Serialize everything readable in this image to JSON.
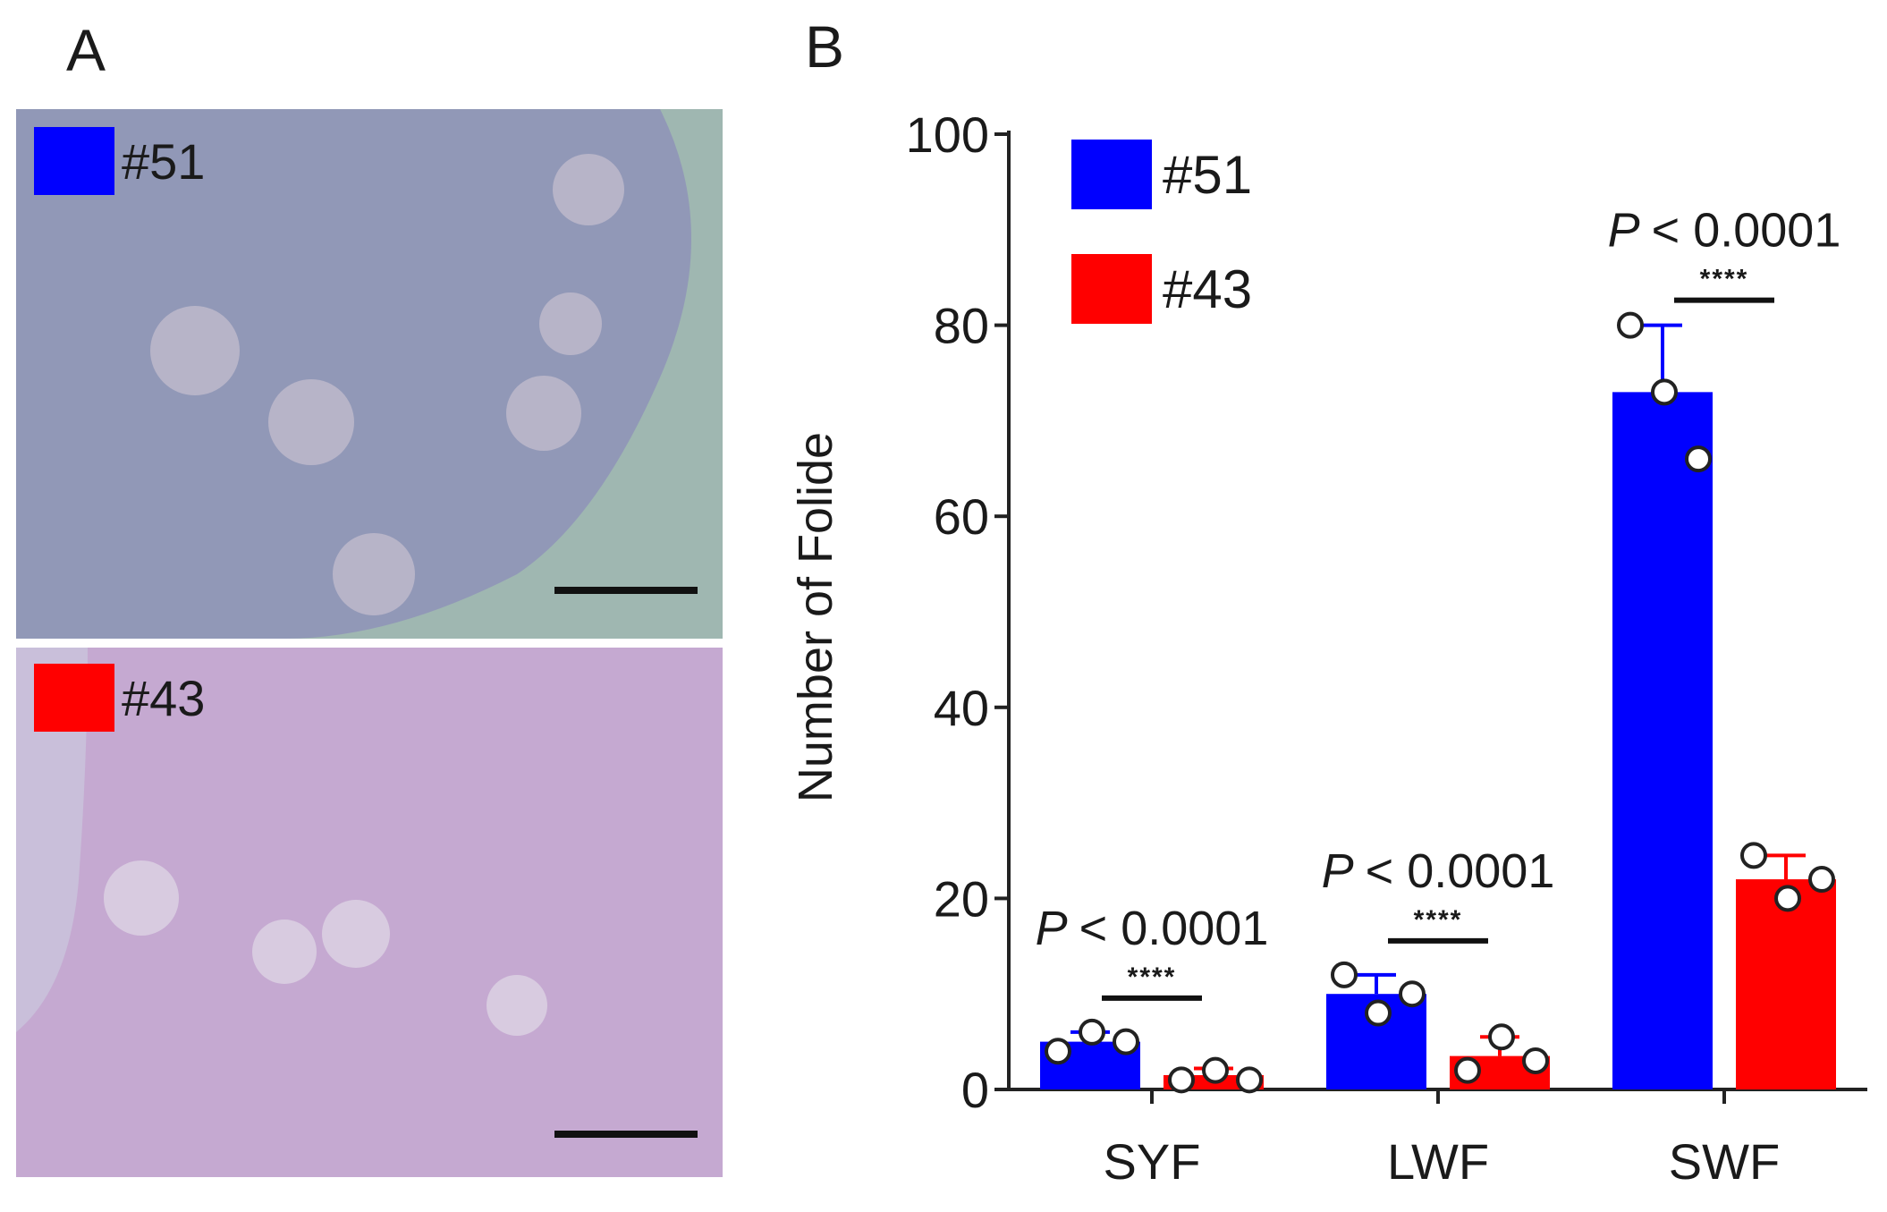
{
  "panel_a": {
    "letter": "A",
    "images": [
      {
        "label": "#51",
        "color": "#0000ff",
        "tissue_color": "#8e93b8",
        "background_color": "#9fb7b1"
      },
      {
        "label": "#43",
        "color": "#ff0000",
        "tissue_color": "#c4a6cf",
        "background_color": "#c9bfda"
      }
    ]
  },
  "panel_b": {
    "letter": "B"
  },
  "chart_data": {
    "type": "bar",
    "title": "",
    "xlabel": "",
    "ylabel": "Number of Folide",
    "ylim": [
      0,
      100
    ],
    "yticks": [
      "0",
      "20",
      "40",
      "60",
      "80",
      "100"
    ],
    "categories": [
      "SYF",
      "LWF",
      "SWF"
    ],
    "legend_position": "top-left",
    "series": [
      {
        "name": "#51",
        "color": "#0000ff",
        "values": [
          5,
          10,
          73
        ],
        "error": [
          1,
          2,
          7
        ],
        "points": [
          [
            4,
            6,
            5
          ],
          [
            12,
            8,
            10
          ],
          [
            80,
            73,
            66
          ]
        ]
      },
      {
        "name": "#43",
        "color": "#ff0000",
        "values": [
          1.5,
          3.5,
          22
        ],
        "error": [
          0.7,
          2,
          2.5
        ],
        "points": [
          [
            1,
            2,
            1
          ],
          [
            2,
            5.5,
            3
          ],
          [
            24.5,
            20,
            22
          ]
        ]
      }
    ],
    "annotations": [
      {
        "category": "SYF",
        "p_text": "< 0.0001",
        "p_symbol": "P",
        "stars": "****"
      },
      {
        "category": "LWF",
        "p_text": "< 0.0001",
        "p_symbol": "P",
        "stars": "****"
      },
      {
        "category": "SWF",
        "p_text": "< 0.0001",
        "p_symbol": "P",
        "stars": "****"
      }
    ]
  }
}
